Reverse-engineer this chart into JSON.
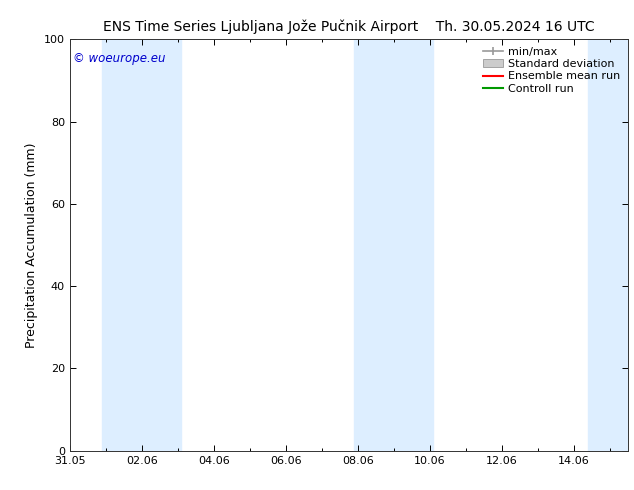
{
  "title_left": "ENS Time Series Ljubljana Jože Pučnik Airport",
  "title_right": "Th. 30.05.2024 16 UTC",
  "ylabel": "Precipitation Accumulation (mm)",
  "watermark": "© woeurope.eu",
  "ylim": [
    0,
    100
  ],
  "yticks": [
    0,
    20,
    40,
    60,
    80,
    100
  ],
  "x_tick_labels": [
    "31.05",
    "02.06",
    "04.06",
    "06.06",
    "08.06",
    "10.06",
    "12.06",
    "14.06"
  ],
  "x_tick_positions": [
    0,
    2,
    4,
    6,
    8,
    10,
    12,
    14
  ],
  "xlim": [
    0,
    15.5
  ],
  "shaded_bands": [
    {
      "x_start": 0.9,
      "x_end": 3.1,
      "color": "#ddeeff"
    },
    {
      "x_start": 7.9,
      "x_end": 10.1,
      "color": "#ddeeff"
    },
    {
      "x_start": 14.4,
      "x_end": 15.5,
      "color": "#ddeeff"
    }
  ],
  "legend_items": [
    {
      "label": "min/max",
      "color": "#aaaaaa",
      "type": "errorbar"
    },
    {
      "label": "Standard deviation",
      "color": "#cccccc",
      "type": "box"
    },
    {
      "label": "Ensemble mean run",
      "color": "#ff0000",
      "type": "line"
    },
    {
      "label": "Controll run",
      "color": "#009900",
      "type": "line"
    }
  ],
  "background_color": "#ffffff",
  "plot_bg_color": "#ffffff",
  "watermark_color": "#0000cc",
  "title_fontsize": 10,
  "label_fontsize": 9,
  "tick_fontsize": 8,
  "legend_fontsize": 8
}
